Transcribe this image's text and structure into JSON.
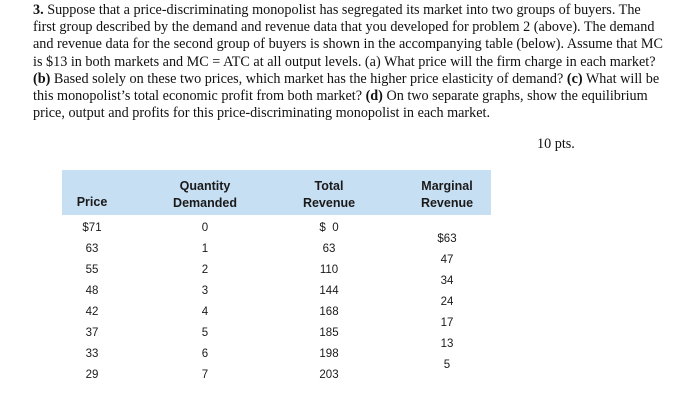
{
  "problem": {
    "number": "3.",
    "s1": " Suppose that a price-discriminating monopolist has segregated its market into two groups of buyers. The first group described by the demand and revenue data that you developed for problem 2 (above). The demand and revenue data for the second group of buyers is shown in the accompanying table (below). Assume that MC is $13 in both markets and MC = ATC at all output levels. (a) What price will the firm charge in each market? ",
    "b_label": "(b)",
    "s2": " Based solely on these two prices, which market has the higher price elasticity of demand? ",
    "c_label": "(c)",
    "s3": " What will be this monopolist’s total economic profit from both market? ",
    "d_label": "(d)",
    "s4": " On two separate graphs, show the equilibrium price, output and profits for this price-discriminating monopolist in each market.",
    "points": "10 pts."
  },
  "table": {
    "headers": {
      "price": "Price",
      "quantity_1": "Quantity",
      "quantity_2": "Demanded",
      "total_1": "Total",
      "total_2": "Revenue",
      "marginal_1": "Marginal",
      "marginal_2": "Revenue"
    },
    "prices": [
      "$71",
      "63",
      "55",
      "48",
      "42",
      "37",
      "33",
      "29"
    ],
    "quantities": [
      "0",
      "1",
      "2",
      "3",
      "4",
      "5",
      "6",
      "7"
    ],
    "total_revenue": [
      "$  0",
      "63",
      "110",
      "144",
      "168",
      "185",
      "198",
      "203"
    ],
    "marginal_revenue": [
      "$63",
      "47",
      "34",
      "24",
      "17",
      "13",
      "5"
    ]
  }
}
